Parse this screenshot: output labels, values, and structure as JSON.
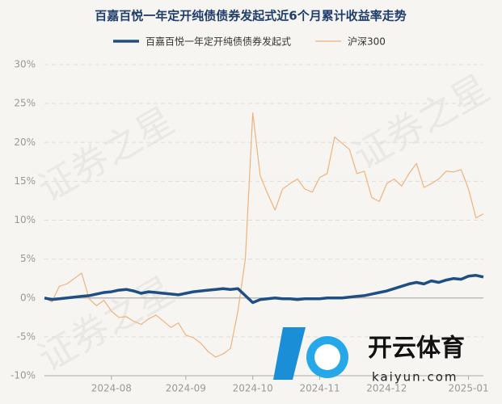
{
  "chart_data": {
    "type": "line",
    "title": "百嘉百悦一年定开纯债债券发起式近6个月累计收益率走势",
    "watermark": "证券之星",
    "logo_text": "开云体育",
    "logo_url": "kaiyun.com",
    "categories": [
      null,
      null,
      null,
      null,
      null,
      null,
      null,
      null,
      null,
      "2024-08",
      null,
      null,
      null,
      null,
      null,
      null,
      null,
      null,
      null,
      "2024-09",
      null,
      null,
      null,
      null,
      null,
      null,
      null,
      null,
      "2024-10",
      null,
      null,
      null,
      null,
      null,
      null,
      null,
      null,
      "2024-11",
      null,
      null,
      null,
      null,
      null,
      null,
      null,
      null,
      "2024-12",
      null,
      null,
      null,
      null,
      null,
      null,
      null,
      null,
      null,
      null,
      "2025-01",
      null,
      null
    ],
    "series": [
      {
        "name": "百嘉百悦一年定开纯债债券发起式",
        "color": "#1f4e85",
        "width": 3.5,
        "values": [
          0,
          -0.2,
          -0.1,
          0,
          0.1,
          0.2,
          0.3,
          0.5,
          0.7,
          0.8,
          1,
          1.1,
          0.9,
          0.6,
          0.8,
          0.7,
          0.6,
          0.5,
          0.4,
          0.6,
          0.8,
          0.9,
          1,
          1.1,
          1.2,
          1.1,
          1.2,
          0.3,
          -0.6,
          -0.2,
          -0.1,
          0,
          -0.1,
          -0.1,
          -0.2,
          -0.1,
          -0.1,
          -0.1,
          0,
          0,
          0,
          0.1,
          0.2,
          0.3,
          0.5,
          0.7,
          0.9,
          1.2,
          1.5,
          1.8,
          2,
          1.8,
          2.2,
          2,
          2.3,
          2.5,
          2.4,
          2.8,
          2.9,
          2.7
        ]
      },
      {
        "name": "沪深300",
        "color": "#f0b27a",
        "width": 1.2,
        "values": [
          0,
          -0.5,
          1.5,
          1.8,
          2.5,
          3.2,
          -0.1,
          -1,
          -0.3,
          -1.7,
          -2.5,
          -2.4,
          -3,
          -3.4,
          -2.7,
          -2.2,
          -3,
          -3.8,
          -3.2,
          -4.8,
          -5.1,
          -5.8,
          -6.9,
          -7.6,
          -7.2,
          -6.5,
          -1.7,
          5,
          23.8,
          15.7,
          13.4,
          11.3,
          14,
          14.7,
          15.3,
          14,
          13.6,
          15.5,
          16,
          20.7,
          19.9,
          19.1,
          16,
          16.3,
          12.9,
          12.4,
          14.7,
          15.3,
          14.4,
          16,
          17.3,
          14.2,
          14.7,
          15.3,
          16.3,
          16.2,
          16.5,
          14,
          10.3,
          10.8
        ]
      }
    ],
    "ylim": [
      -10,
      30
    ],
    "yticks": [
      {
        "value": -10,
        "label": "-10%"
      },
      {
        "value": -5,
        "label": "-5%"
      },
      {
        "value": 0,
        "label": "0%"
      },
      {
        "value": 5,
        "label": "5%"
      },
      {
        "value": 10,
        "label": "10%"
      },
      {
        "value": 15,
        "label": "15%"
      },
      {
        "value": 20,
        "label": "20%"
      },
      {
        "value": 25,
        "label": "25%"
      },
      {
        "value": 30,
        "label": "30%"
      }
    ],
    "grid": true
  }
}
